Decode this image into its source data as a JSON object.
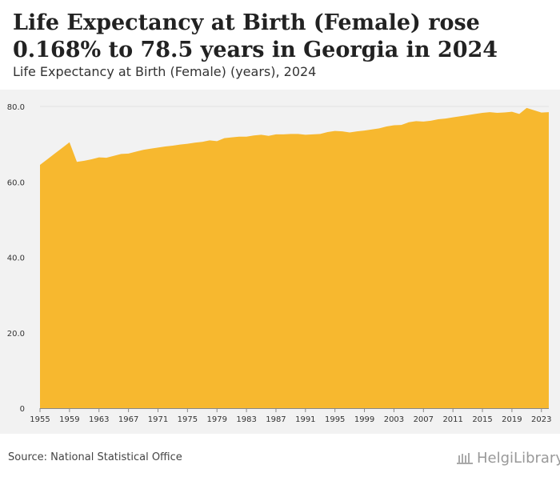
{
  "title": "Life Expectancy at Birth (Female) rose 0.168% to 78.5 years in Georgia in 2024",
  "subtitle": "Life Expectancy at Birth (Female) (years), 2024",
  "source": "Source: National Statistical Office",
  "logo_text": "HelgiLibrary",
  "colors": {
    "area": "#F7B82F",
    "background": "#F2F2F2",
    "grid": "#E2E2E2"
  },
  "chart_data": {
    "type": "area",
    "title": "Life Expectancy at Birth (Female) rose 0.168% to 78.5 years in Georgia in 2024",
    "ylabel": "Life Expectancy at Birth (Female) (years)",
    "xlabel": "",
    "ylim": [
      0,
      80
    ],
    "x_range": [
      1955,
      2024
    ],
    "yticks": [
      0,
      20,
      40,
      60,
      80
    ],
    "ytick_labels": [
      "0",
      "20.0",
      "40.0",
      "60.0",
      "80.0"
    ],
    "xticks": [
      1955,
      1959,
      1963,
      1967,
      1971,
      1975,
      1979,
      1983,
      1987,
      1991,
      1995,
      1999,
      2003,
      2007,
      2011,
      2015,
      2019,
      2023
    ],
    "xtick_labels": [
      "1955",
      "1959",
      "1963",
      "1967",
      "1971",
      "1975",
      "1979",
      "1983",
      "1987",
      "1991",
      "1995",
      "1999",
      "2003",
      "2007",
      "2011",
      "2015",
      "2019",
      "2023"
    ],
    "series": [
      {
        "name": "Georgia",
        "x": [
          1955,
          1956,
          1957,
          1958,
          1959,
          1960,
          1961,
          1962,
          1963,
          1964,
          1965,
          1966,
          1967,
          1968,
          1969,
          1970,
          1971,
          1972,
          1973,
          1974,
          1975,
          1976,
          1977,
          1978,
          1979,
          1980,
          1981,
          1982,
          1983,
          1984,
          1985,
          1986,
          1987,
          1988,
          1989,
          1990,
          1991,
          1992,
          1993,
          1994,
          1995,
          1996,
          1997,
          1998,
          1999,
          2000,
          2001,
          2002,
          2003,
          2004,
          2005,
          2006,
          2007,
          2008,
          2009,
          2010,
          2011,
          2012,
          2013,
          2014,
          2015,
          2016,
          2017,
          2018,
          2019,
          2020,
          2021,
          2022,
          2023,
          2024
        ],
        "values": [
          64.5,
          66.0,
          67.5,
          69.0,
          70.5,
          65.3,
          65.6,
          66.0,
          66.5,
          66.4,
          66.9,
          67.4,
          67.5,
          68.0,
          68.5,
          68.8,
          69.1,
          69.4,
          69.6,
          69.9,
          70.1,
          70.4,
          70.6,
          71.0,
          70.8,
          71.6,
          71.8,
          72.0,
          72.0,
          72.3,
          72.5,
          72.2,
          72.6,
          72.6,
          72.7,
          72.7,
          72.5,
          72.6,
          72.7,
          73.2,
          73.5,
          73.4,
          73.1,
          73.4,
          73.6,
          73.9,
          74.2,
          74.7,
          75.0,
          75.1,
          75.8,
          76.1,
          76.0,
          76.2,
          76.6,
          76.8,
          77.1,
          77.4,
          77.7,
          78.0,
          78.3,
          78.5,
          78.3,
          78.4,
          78.6,
          78.0,
          79.6,
          79.0,
          78.37,
          78.5
        ]
      }
    ]
  }
}
